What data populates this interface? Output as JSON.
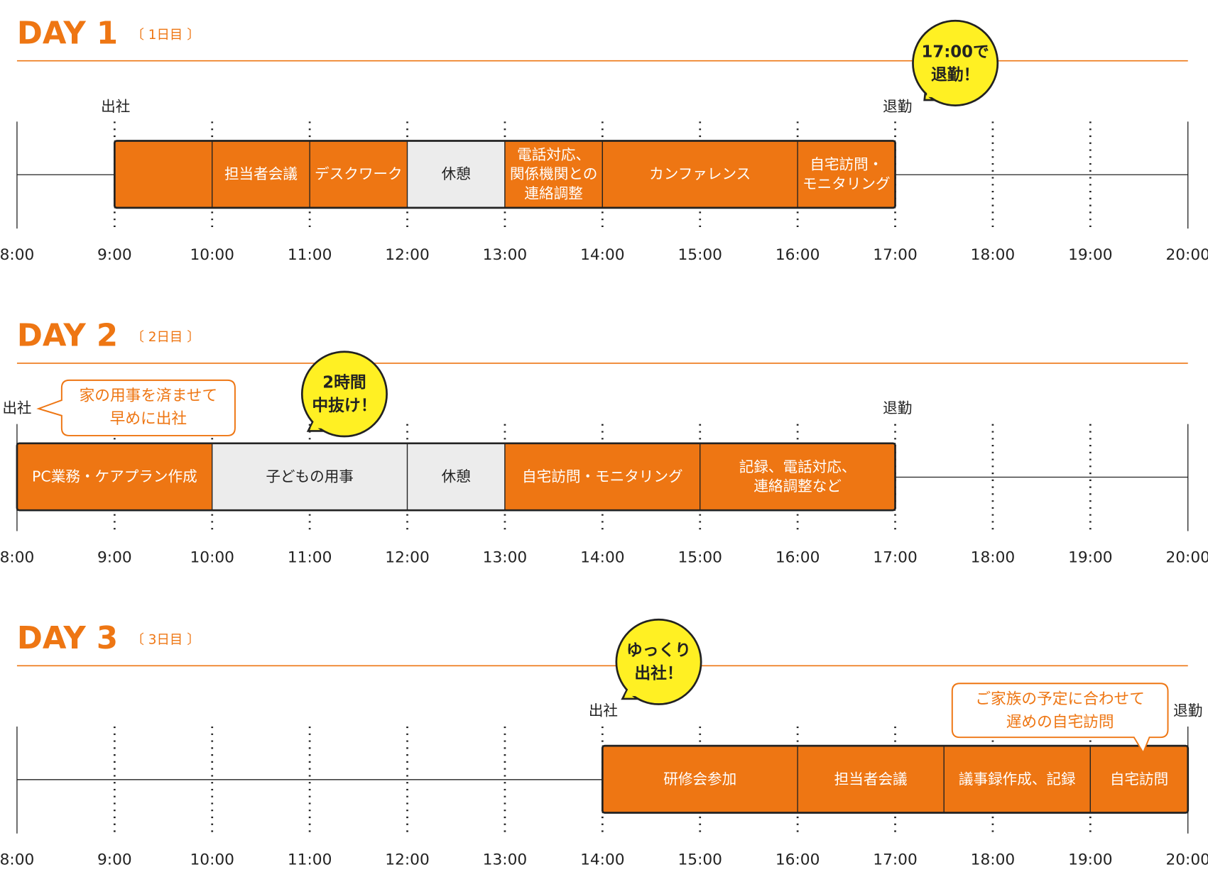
{
  "time_labels": [
    "8:00",
    "9:00",
    "10:00",
    "11:00",
    "12:00",
    "13:00",
    "14:00",
    "15:00",
    "16:00",
    "17:00",
    "18:00",
    "19:00",
    "20:00"
  ],
  "days": [
    {
      "title": "DAY 1",
      "subtitle": "〔 1日目 〕",
      "arrive_label": "出社",
      "leave_label": "退勤",
      "blocks": [
        {
          "start": 9,
          "end": 10,
          "kind": "work",
          "lines": []
        },
        {
          "start": 10,
          "end": 11,
          "kind": "work",
          "lines": [
            "担当者会議"
          ]
        },
        {
          "start": 11,
          "end": 12,
          "kind": "work",
          "lines": [
            "デスクワーク"
          ]
        },
        {
          "start": 12,
          "end": 13,
          "kind": "rest",
          "lines": [
            "休憩"
          ]
        },
        {
          "start": 13,
          "end": 14,
          "kind": "work",
          "lines": [
            "電話対応、",
            "関係機関との",
            "連絡調整"
          ]
        },
        {
          "start": 14,
          "end": 16,
          "kind": "work",
          "lines": [
            "カンファレンス"
          ]
        },
        {
          "start": 16,
          "end": 17,
          "kind": "work",
          "lines": [
            "自宅訪問・",
            "モニタリング"
          ]
        }
      ],
      "bubble": [
        "17:00で",
        "退勤！"
      ]
    },
    {
      "title": "DAY 2",
      "subtitle": "〔 2日目 〕",
      "arrive_label": "出社",
      "leave_label": "退勤",
      "blocks": [
        {
          "start": 8,
          "end": 10,
          "kind": "work",
          "lines": [
            "PC業務・ケアプラン作成"
          ]
        },
        {
          "start": 10,
          "end": 12,
          "kind": "rest",
          "lines": [
            "子どもの用事"
          ]
        },
        {
          "start": 12,
          "end": 13,
          "kind": "rest",
          "lines": [
            "休憩"
          ]
        },
        {
          "start": 13,
          "end": 15,
          "kind": "work",
          "lines": [
            "自宅訪問・モニタリング"
          ]
        },
        {
          "start": 15,
          "end": 17,
          "kind": "work",
          "lines": [
            "記録、電話対応、",
            "連絡調整など"
          ]
        }
      ],
      "bubble": [
        "2時間",
        "中抜け！"
      ],
      "callout": [
        "家の用事を済ませて",
        "早めに出社"
      ]
    },
    {
      "title": "DAY 3",
      "subtitle": "〔 3日目 〕",
      "arrive_label": "出社",
      "leave_label": "退勤",
      "blocks": [
        {
          "start": 14,
          "end": 16,
          "kind": "work",
          "lines": [
            "研修会参加"
          ]
        },
        {
          "start": 16,
          "end": 17.5,
          "kind": "work",
          "lines": [
            "担当者会議"
          ]
        },
        {
          "start": 17.5,
          "end": 19,
          "kind": "work",
          "lines": [
            "議事録作成、記録"
          ]
        },
        {
          "start": 19,
          "end": 20,
          "kind": "work",
          "lines": [
            "自宅訪問"
          ]
        }
      ],
      "bubble": [
        "ゆっくり",
        "出社！"
      ],
      "callout": [
        "ご家族の予定に合わせて",
        "遅めの自宅訪問"
      ]
    }
  ]
}
